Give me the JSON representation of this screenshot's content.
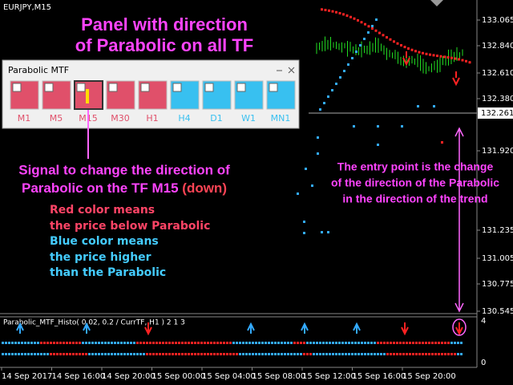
{
  "symbol": "EURJPY,M15",
  "headline": [
    "Panel with direction",
    "of Parabolic on all TF"
  ],
  "panel": {
    "title": "Parabolic MTF",
    "buttons": [
      {
        "label": "M1",
        "color": "#e0506a"
      },
      {
        "label": "M5",
        "color": "#e0506a"
      },
      {
        "label": "M15",
        "color": "#e0506a"
      },
      {
        "label": "M30",
        "color": "#e0506a"
      },
      {
        "label": "H1",
        "color": "#e0506a"
      },
      {
        "label": "H4",
        "color": "#38c0f0"
      },
      {
        "label": "D1",
        "color": "#38c0f0"
      },
      {
        "label": "W1",
        "color": "#38c0f0"
      },
      {
        "label": "MN1",
        "color": "#38c0f0"
      }
    ]
  },
  "signal_note": {
    "line1": "Signal to change the direction of",
    "line2": "Parabolic on the TF M15",
    "direction": "(down)"
  },
  "red_note": [
    "Red color means",
    "the price below Parabolic"
  ],
  "blue_note": [
    "Blue color means",
    "the price higher",
    "than the Parabolic"
  ],
  "entry_note": [
    "The entry point is the change",
    "of the direction of the Parabolic",
    "in the direction of the trend"
  ],
  "price_axis": [
    "133.065",
    "132.840",
    "132.610",
    "132.380",
    "131.920",
    "131.235",
    "131.005",
    "130.775",
    "130.545"
  ],
  "current_price": "132.261",
  "indicator": {
    "label": "Parabolic_MTF_Histo( 0.02, 0.2 / CurrTF, H1 ) 2 1 3",
    "axis_top": "4",
    "axis_bottom": "0"
  },
  "time_axis": [
    "14 Sep 2017",
    "14 Sep 16:00",
    "14 Sep 20:00",
    "15 Sep 00:00",
    "15 Sep 04:00",
    "15 Sep 08:00",
    "15 Sep 12:00",
    "15 Sep 16:00",
    "15 Sep 20:00"
  ]
}
